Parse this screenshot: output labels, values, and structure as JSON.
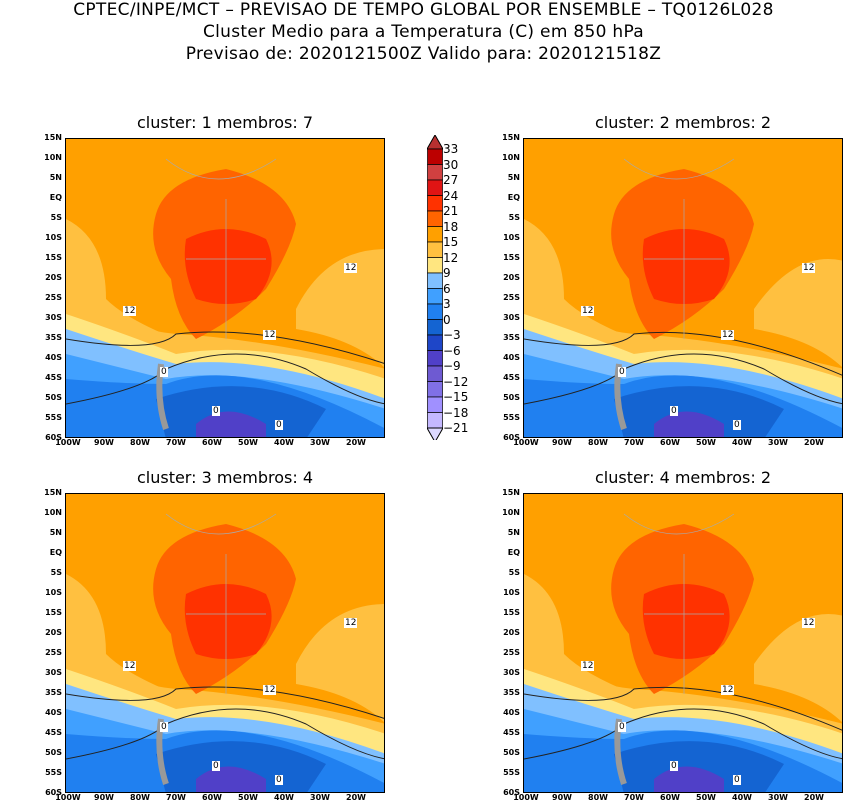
{
  "header": {
    "line1": "CPTEC/INPE/MCT – PREVISAO DE TEMPO GLOBAL POR ENSEMBLE – TQ0126L028",
    "line2": "Cluster Medio para a Temperatura (C) em 850 hPa",
    "line3": "Previsao de: 2020121500Z    Valido para: 2020121518Z"
  },
  "lat_ticks": [
    "15N",
    "10N",
    "5N",
    "EQ",
    "5S",
    "10S",
    "15S",
    "20S",
    "25S",
    "30S",
    "35S",
    "40S",
    "45S",
    "50S",
    "55S",
    "60S"
  ],
  "lon_ticks": [
    "100W",
    "90W",
    "80W",
    "70W",
    "60W",
    "50W",
    "40W",
    "30W",
    "20W"
  ],
  "panels": [
    {
      "title": "cluster: 1   membros: 7",
      "labels": [
        "12",
        "12",
        "12",
        "0",
        "0",
        "0"
      ]
    },
    {
      "title": "cluster: 2   membros: 2",
      "labels": [
        "12",
        "12",
        "12",
        "0",
        "0",
        "0"
      ]
    },
    {
      "title": "cluster: 3   membros: 4",
      "labels": [
        "12",
        "12",
        "12",
        "0",
        "0",
        "0"
      ]
    },
    {
      "title": "cluster: 4   membros: 2",
      "labels": [
        "12",
        "12",
        "12",
        "0",
        "0",
        "0"
      ]
    }
  ],
  "colorbar": {
    "labels": [
      "33",
      "30",
      "27",
      "24",
      "21",
      "18",
      "15",
      "12",
      "9",
      "6",
      "3",
      "0",
      "−3",
      "−6",
      "−9",
      "−12",
      "−15",
      "−18",
      "−21"
    ],
    "colors": [
      "#b83030",
      "#bc0000",
      "#d04040",
      "#e01414",
      "#ff3200",
      "#ff6400",
      "#ffa000",
      "#ffc040",
      "#ffe680",
      "#80c0ff",
      "#40a0ff",
      "#2080f0",
      "#1464d2",
      "#1e46c8",
      "#5040c8",
      "#6e5ad2",
      "#8070e6",
      "#a090ff",
      "#c4b8ff",
      "#dcd8ff"
    ]
  }
}
